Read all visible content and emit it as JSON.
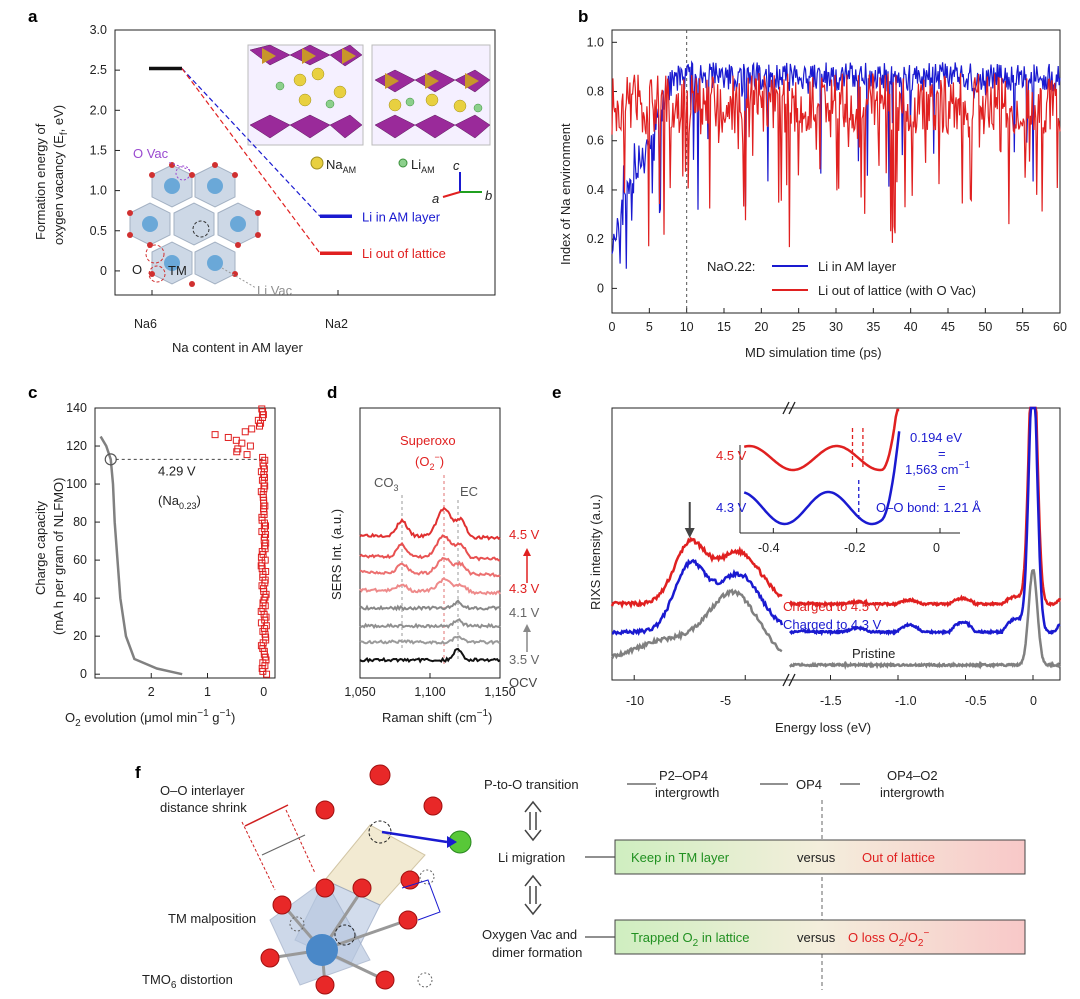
{
  "colors": {
    "blue": "#1a1ad0",
    "red": "#e02020",
    "gray": "#808080",
    "black": "#111111",
    "green_box": "#d8f0c8",
    "red_box": "#f8d0d0"
  },
  "chart_data": [
    {
      "panel": "a",
      "type": "line",
      "ylabel_line1": "Formation energy of",
      "ylabel_line2": "oxygen vacancy (E",
      "ylabel_sub": "f",
      "ylabel_tail": ", eV)",
      "xlabel": "Na content in AM layer",
      "categories": [
        "Na6",
        "Na2"
      ],
      "ylim": [
        -0.3,
        3.0
      ],
      "yticks": [
        "0",
        "0.5",
        "1.0",
        "1.5",
        "2.0",
        "2.5",
        "3.0"
      ],
      "yticks_values": [
        0,
        0.5,
        1.0,
        1.5,
        2.0,
        2.5,
        3.0
      ],
      "series": [
        {
          "name": "Li in AM layer",
          "values": [
            2.52,
            0.68
          ]
        },
        {
          "name": "Li out of lattice",
          "values": [
            2.52,
            0.22
          ]
        }
      ],
      "annotations": {
        "o_vac": "O Vac",
        "li_vac": "Li Vac",
        "o": "O",
        "tm": "TM",
        "na_am": "Na",
        "na_am_sub": "AM",
        "li_am": "Li",
        "li_am_sub": "AM",
        "axis_a": "a",
        "axis_b": "b",
        "axis_c": "c"
      }
    },
    {
      "panel": "b",
      "type": "line",
      "ylabel": "Index of Na environment",
      "xlabel": "MD simulation time (ps)",
      "xlim": [
        0,
        60
      ],
      "ylim": [
        -0.1,
        1.05
      ],
      "xticks": [
        "0",
        "5",
        "10",
        "15",
        "20",
        "25",
        "30",
        "35",
        "40",
        "45",
        "50",
        "55",
        "60"
      ],
      "xticks_values": [
        0,
        5,
        10,
        15,
        20,
        25,
        30,
        35,
        40,
        45,
        50,
        55,
        60
      ],
      "yticks": [
        "0",
        "0.2",
        "0.4",
        "0.6",
        "0.8",
        "1.0"
      ],
      "yticks_values": [
        0,
        0.2,
        0.4,
        0.6,
        0.8,
        1.0
      ],
      "vline_x": 10,
      "legend_title": "NaO.22:",
      "series": [
        {
          "name": "Li in AM layer",
          "pattern": "rises from ~0.2 to ~0.85 by 8 ps, then fluctuates 0.7–0.95 with dips to ~0.2"
        },
        {
          "name": "Li out of lattice (with O Vac)",
          "pattern": "fluctuates 0.3–0.9 with frequent dips to ~0.1"
        }
      ]
    },
    {
      "panel": "c",
      "type": "scatter",
      "ylabel_line1": "Charge capacity",
      "ylabel_line2": "(mA h per gram of NLFMO)",
      "xlabel_pre": "O",
      "xlabel_sub": "2",
      "xlabel_tail": " evolution (μmol min",
      "xlabel_sup1": "−1",
      "xlabel_tail2": " g",
      "xlabel_sup2": "−1",
      "xlabel_end": ")",
      "ylim": [
        -2,
        140
      ],
      "yticks": [
        "0",
        "20",
        "40",
        "60",
        "80",
        "100",
        "120",
        "140"
      ],
      "yticks_values": [
        0,
        20,
        40,
        60,
        80,
        100,
        120,
        140
      ],
      "xlim_reversed": [
        3,
        -0.2
      ],
      "xticks": [
        "2",
        "1",
        "0"
      ],
      "xticks_values": [
        2,
        1,
        0
      ],
      "annotation_v": "4.29 V",
      "annotation_na": "(Na",
      "annotation_na_sub": "0.23",
      "annotation_na_end": ")",
      "annotation_y": 113
    },
    {
      "panel": "d",
      "type": "line",
      "ylabel": "SERS Int. (a.u.)",
      "xlabel_pre": "Raman shift (cm",
      "xlabel_sup": "−1",
      "xlabel_end": ")",
      "xlim": [
        1050,
        1150
      ],
      "xticks": [
        "1,050",
        "1,100",
        "1,150"
      ],
      "xticks_values": [
        1050,
        1100,
        1150
      ],
      "peak_labels": {
        "co3": "CO",
        "co3_sub": "3",
        "ec": "EC",
        "superoxo": "Superoxo",
        "superoxo_formula": "(O",
        "superoxo_sub": "2",
        "superoxo_sup": "−",
        "superoxo_end": ")"
      },
      "voltage_labels": [
        "4.5 V",
        "4.3 V",
        "4.1 V",
        "3.5 V",
        "OCV"
      ]
    },
    {
      "panel": "e",
      "type": "line",
      "ylabel": "RIXS intensity (a.u.)",
      "xlabel": "Energy loss (eV)",
      "xticks": [
        "-10",
        "-5",
        "-1.5",
        "-1.0",
        "-0.5",
        "0"
      ],
      "series": [
        {
          "name": "Charged to 4.5 V"
        },
        {
          "name": "Charged to 4.3 V"
        },
        {
          "name": "Pristine"
        }
      ],
      "inset": {
        "xticks": [
          "-0.4",
          "-0.2",
          "0"
        ],
        "labels": [
          "4.5 V",
          "4.3 V"
        ],
        "annotation": [
          "0.194 eV",
          "=",
          "1,563 cm",
          "−1",
          "=",
          "O–O bond: 1.21 Å"
        ]
      }
    }
  ],
  "diagram_f": {
    "panel": "f",
    "left_labels": [
      "O–O interlayer",
      "distance shrink",
      "TM malposition",
      "TMO",
      "6",
      " distortion"
    ],
    "rows": [
      {
        "label": "P-to-O transition",
        "items": [
          "P2–OP4",
          "intergrowth",
          "OP4",
          "OP4–O2",
          "intergrowth"
        ]
      },
      {
        "label": "Li migration",
        "left": "Keep in TM layer",
        "middle": "versus",
        "right": "Out of lattice"
      },
      {
        "label": "Oxygen Vac and",
        "label2": "dimer formation",
        "left": "Trapped O",
        "left_sub": "2",
        "left_end": " in lattice",
        "middle": "versus",
        "right": "O loss O",
        "right_sub1": "2",
        "right_mid": "/O",
        "right_sub2": "2",
        "right_sup": "−"
      }
    ]
  }
}
